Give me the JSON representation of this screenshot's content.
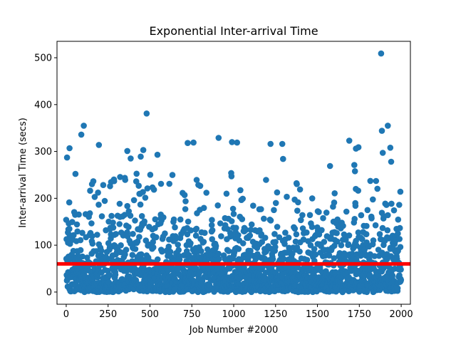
{
  "chart_data": {
    "type": "scatter",
    "title": "Exponential Inter-arrival Time",
    "xlabel": "Job Number #2000",
    "ylabel": "Inter-arrival Time (secs)",
    "xlim": [
      -55,
      2055
    ],
    "ylim": [
      -26,
      535
    ],
    "xticks": [
      0,
      250,
      500,
      750,
      1000,
      1250,
      1500,
      1750,
      2000
    ],
    "yticks": [
      0,
      100,
      200,
      300,
      400,
      500
    ],
    "grid": false,
    "legend": "none",
    "n_points": 2000,
    "mean_line": {
      "y": 60,
      "color": "#ff0000"
    },
    "point_color": "#1f77b4",
    "series": [
      {
        "notable_points": [
          {
            "x": 5,
            "y": 287
          },
          {
            "x": 20,
            "y": 307
          },
          {
            "x": 55,
            "y": 252
          },
          {
            "x": 90,
            "y": 336
          },
          {
            "x": 105,
            "y": 355
          },
          {
            "x": 195,
            "y": 314
          },
          {
            "x": 365,
            "y": 301
          },
          {
            "x": 385,
            "y": 285
          },
          {
            "x": 445,
            "y": 289
          },
          {
            "x": 460,
            "y": 303
          },
          {
            "x": 480,
            "y": 381
          },
          {
            "x": 545,
            "y": 293
          },
          {
            "x": 725,
            "y": 318
          },
          {
            "x": 760,
            "y": 319
          },
          {
            "x": 910,
            "y": 329
          },
          {
            "x": 990,
            "y": 320
          },
          {
            "x": 1020,
            "y": 319
          },
          {
            "x": 1220,
            "y": 316
          },
          {
            "x": 1290,
            "y": 316
          },
          {
            "x": 1295,
            "y": 284
          },
          {
            "x": 1575,
            "y": 269
          },
          {
            "x": 1690,
            "y": 323
          },
          {
            "x": 1730,
            "y": 306
          },
          {
            "x": 1745,
            "y": 309
          },
          {
            "x": 1720,
            "y": 271
          },
          {
            "x": 1880,
            "y": 509
          },
          {
            "x": 1885,
            "y": 344
          },
          {
            "x": 1920,
            "y": 355
          },
          {
            "x": 1935,
            "y": 308
          },
          {
            "x": 1890,
            "y": 297
          },
          {
            "x": 1940,
            "y": 278
          },
          {
            "x": 1850,
            "y": 237
          },
          {
            "x": 1995,
            "y": 214
          }
        ]
      }
    ]
  }
}
